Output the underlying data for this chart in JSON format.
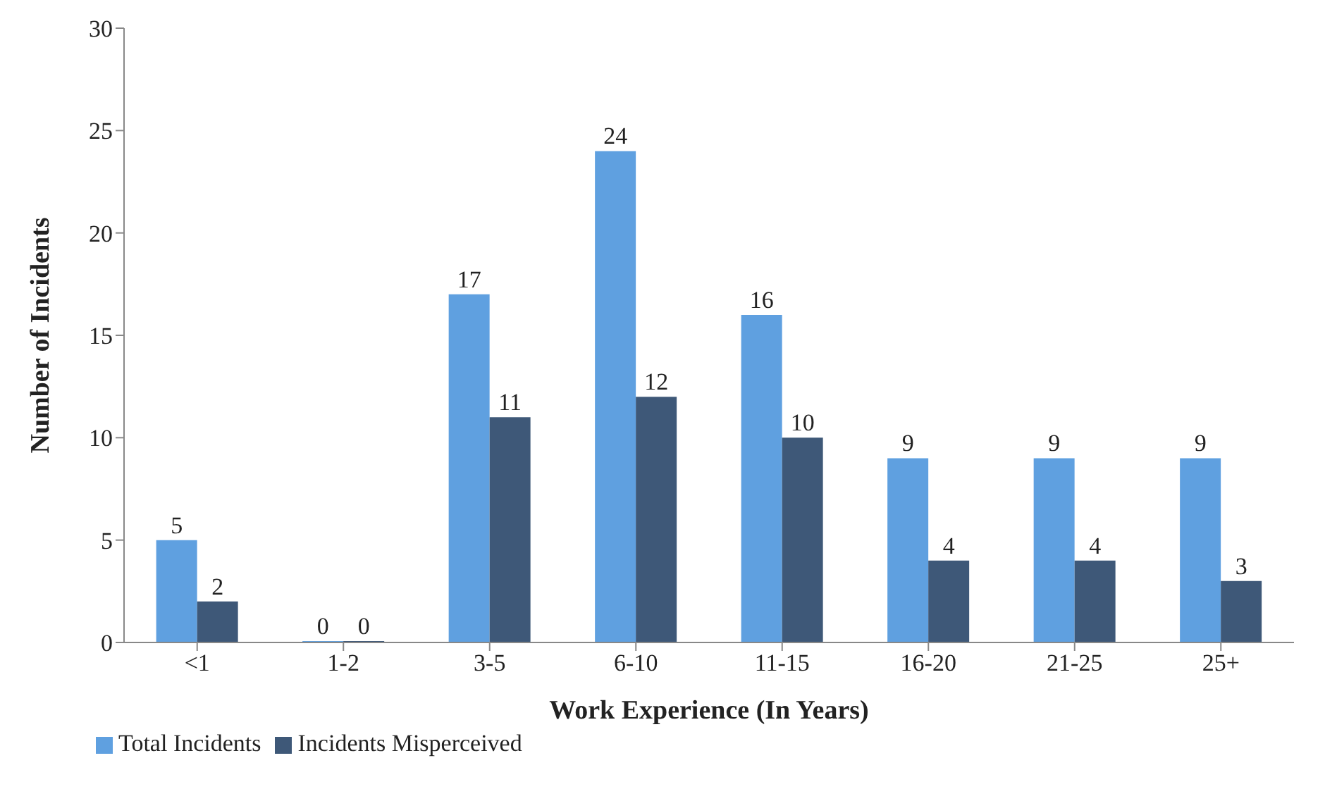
{
  "chart_data": {
    "type": "bar",
    "xlabel": "Work Experience (In Years)",
    "ylabel": "Number of Incidents",
    "categories": [
      "<1",
      "1-2",
      "3-5",
      "6-10",
      "11-15",
      "16-20",
      "21-25",
      "25+"
    ],
    "series": [
      {
        "name": "Total Incidents",
        "color": "#5fa0e0",
        "values": [
          5,
          0,
          17,
          24,
          16,
          9,
          9,
          9
        ]
      },
      {
        "name": "Incidents Misperceived",
        "color": "#3e5878",
        "values": [
          2,
          0,
          11,
          12,
          10,
          4,
          4,
          3
        ]
      }
    ],
    "ylim": [
      0,
      30
    ],
    "yticks": [
      0,
      5,
      10,
      15,
      20,
      25,
      30
    ],
    "grid": false,
    "legend": "bottom left",
    "data_labels": true
  }
}
